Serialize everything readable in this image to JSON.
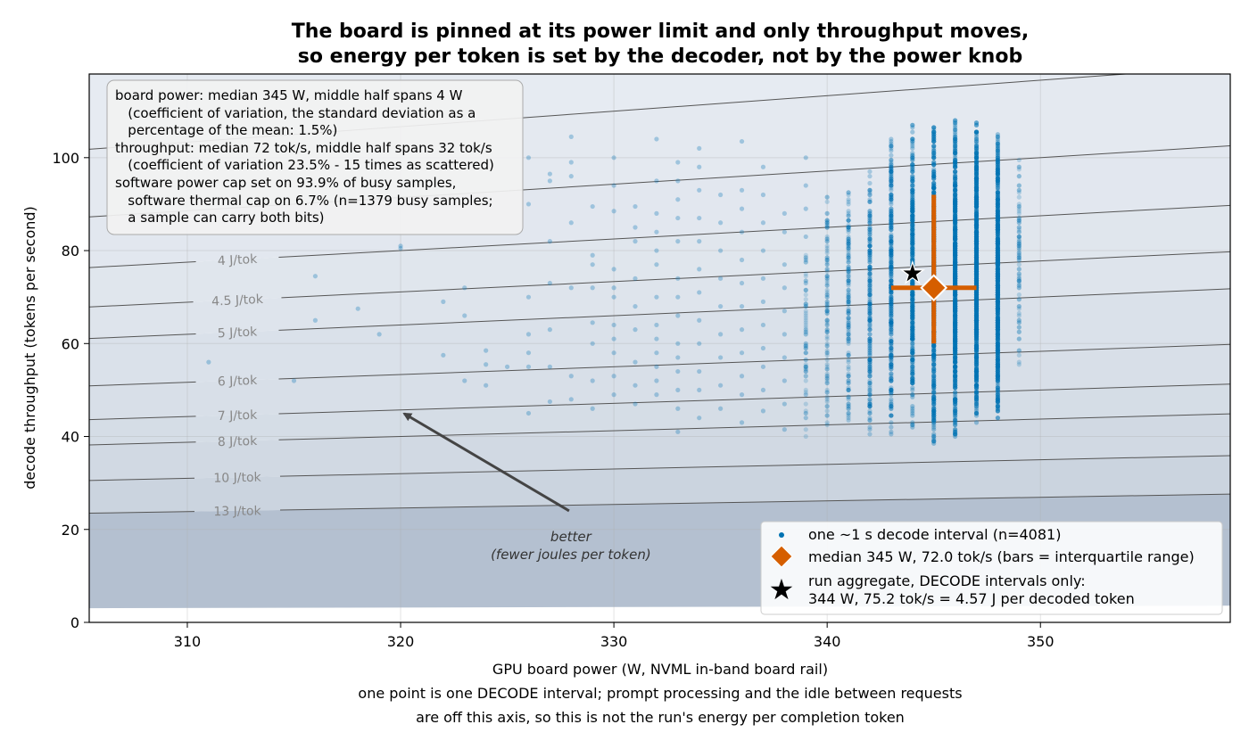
{
  "chart_data": {
    "type": "scatter",
    "title_lines": [
      "The board is pinned at its power limit and only throughput moves,",
      "so energy per token is set by the decoder, not by the power knob"
    ],
    "xlabel": "GPU board power (W, NVML in-band board rail)",
    "xlabel_notes": [
      "one point is one DECODE interval; prompt processing and the idle between requests",
      "are off this axis, so this is not the run's energy per completion token"
    ],
    "ylabel": "decode throughput (tokens per second)",
    "xlim": [
      305.4,
      358.9
    ],
    "ylim": [
      0,
      118
    ],
    "x_ticks": [
      310,
      320,
      330,
      340,
      350
    ],
    "y_ticks": [
      0,
      20,
      40,
      60,
      80,
      100
    ],
    "grid": true,
    "stats_box": [
      "board power: median 345 W, middle half spans 4 W",
      "   (coefficient of variation, the standard deviation as a",
      "   percentage of the mean: 1.5%)",
      "throughput: median 72 tok/s, middle half spans 32 tok/s",
      "   (coefficient of variation 23.5% - 15 times as scattered)",
      "software power cap set on 93.9% of busy samples,",
      "   software thermal cap on 6.7% (n=1379 busy samples;",
      "   a sample can carry both bits)"
    ],
    "iso_energy_lines": [
      {
        "jpt": 3.0,
        "label": ""
      },
      {
        "jpt": 3.5,
        "label": ""
      },
      {
        "jpt": 4.0,
        "label": "4 J/tok"
      },
      {
        "jpt": 4.5,
        "label": "4.5 J/tok"
      },
      {
        "jpt": 5.0,
        "label": "5 J/tok"
      },
      {
        "jpt": 6.0,
        "label": "6 J/tok"
      },
      {
        "jpt": 7.0,
        "label": "7 J/tok"
      },
      {
        "jpt": 8.0,
        "label": "8 J/tok"
      },
      {
        "jpt": 10.0,
        "label": "10 J/tok"
      },
      {
        "jpt": 13.0,
        "label": "13 J/tok"
      }
    ],
    "annotation": {
      "lines": [
        "better",
        "(fewer joules per token)"
      ],
      "arrow_from": [
        327.9,
        24
      ],
      "arrow_to": [
        320,
        45.5
      ]
    },
    "sparse_points": [
      [
        311,
        56
      ],
      [
        315,
        52
      ],
      [
        316,
        65
      ],
      [
        316,
        74.5
      ],
      [
        318,
        67.5
      ],
      [
        319,
        62
      ],
      [
        320,
        80.5
      ],
      [
        320,
        81
      ],
      [
        322,
        57.5
      ],
      [
        322,
        69
      ],
      [
        323,
        52
      ],
      [
        323,
        66
      ],
      [
        323,
        72
      ],
      [
        324,
        51
      ],
      [
        324,
        55.5
      ],
      [
        324,
        58.5
      ],
      [
        325,
        55
      ],
      [
        326,
        55
      ],
      [
        326,
        58
      ],
      [
        326,
        62
      ],
      [
        326,
        45
      ],
      [
        326,
        70
      ],
      [
        326,
        90
      ],
      [
        326,
        100
      ],
      [
        327,
        47.5
      ],
      [
        327,
        55
      ],
      [
        327,
        63
      ],
      [
        327,
        73
      ],
      [
        327,
        82
      ],
      [
        327,
        95
      ],
      [
        327,
        96.5
      ],
      [
        328,
        48
      ],
      [
        328,
        53
      ],
      [
        328,
        72
      ],
      [
        328,
        86
      ],
      [
        328,
        96
      ],
      [
        328,
        99
      ],
      [
        328,
        104.5
      ],
      [
        329,
        46
      ],
      [
        329,
        52
      ],
      [
        329,
        60
      ],
      [
        329,
        64.5
      ],
      [
        329,
        72
      ],
      [
        329,
        77
      ],
      [
        329,
        79
      ],
      [
        329,
        89.5
      ],
      [
        330,
        49
      ],
      [
        330,
        53
      ],
      [
        330,
        58
      ],
      [
        330,
        61
      ],
      [
        330,
        64
      ],
      [
        330,
        70
      ],
      [
        330,
        72
      ],
      [
        330,
        76
      ],
      [
        330,
        88.5
      ],
      [
        330,
        94
      ],
      [
        330,
        100
      ],
      [
        331,
        47
      ],
      [
        331,
        51
      ],
      [
        331,
        56
      ],
      [
        331,
        63
      ],
      [
        331,
        68
      ],
      [
        331,
        74
      ],
      [
        331,
        82
      ],
      [
        331,
        85
      ],
      [
        331,
        89.5
      ],
      [
        332,
        49
      ],
      [
        332,
        52
      ],
      [
        332,
        55
      ],
      [
        332,
        58
      ],
      [
        332,
        61
      ],
      [
        332,
        64
      ],
      [
        332,
        70
      ],
      [
        332,
        77
      ],
      [
        332,
        80
      ],
      [
        332,
        84
      ],
      [
        332,
        88
      ],
      [
        332,
        95
      ],
      [
        332,
        104
      ],
      [
        333,
        41
      ],
      [
        333,
        46
      ],
      [
        333,
        50
      ],
      [
        333,
        54
      ],
      [
        333,
        57
      ],
      [
        333,
        60
      ],
      [
        333,
        66
      ],
      [
        333,
        70
      ],
      [
        333,
        74
      ],
      [
        333,
        82
      ],
      [
        333,
        87
      ],
      [
        333,
        91
      ],
      [
        333,
        95
      ],
      [
        333,
        99
      ],
      [
        334,
        44
      ],
      [
        334,
        50
      ],
      [
        334,
        54
      ],
      [
        334,
        60
      ],
      [
        334,
        65
      ],
      [
        334,
        71
      ],
      [
        334,
        76
      ],
      [
        334,
        82
      ],
      [
        334,
        87
      ],
      [
        334,
        93
      ],
      [
        334,
        98
      ],
      [
        334,
        102
      ],
      [
        335,
        46
      ],
      [
        335,
        51
      ],
      [
        335,
        57
      ],
      [
        335,
        62
      ],
      [
        335,
        68
      ],
      [
        335,
        74
      ],
      [
        335,
        80
      ],
      [
        335,
        86
      ],
      [
        335,
        92
      ],
      [
        336,
        43
      ],
      [
        336,
        49
      ],
      [
        336,
        53
      ],
      [
        336,
        58
      ],
      [
        336,
        63
      ],
      [
        336,
        68
      ],
      [
        336,
        73
      ],
      [
        336,
        78
      ],
      [
        336,
        84
      ],
      [
        336,
        89
      ],
      [
        336,
        93
      ],
      [
        336,
        103.5
      ],
      [
        337,
        45.5
      ],
      [
        337,
        50
      ],
      [
        337,
        55
      ],
      [
        337,
        59
      ],
      [
        337,
        64
      ],
      [
        337,
        69
      ],
      [
        337,
        74
      ],
      [
        337,
        80
      ],
      [
        337,
        86
      ],
      [
        337,
        92
      ],
      [
        337,
        98
      ],
      [
        338,
        41.5
      ],
      [
        338,
        47
      ],
      [
        338,
        52
      ],
      [
        338,
        57
      ],
      [
        338,
        62
      ],
      [
        338,
        67
      ],
      [
        338,
        72
      ],
      [
        338,
        77
      ],
      [
        338,
        84
      ],
      [
        338,
        88
      ],
      [
        339,
        44
      ],
      [
        339,
        49
      ],
      [
        339,
        54
      ],
      [
        339,
        59
      ],
      [
        339,
        63
      ],
      [
        339,
        68
      ],
      [
        339,
        73
      ],
      [
        339,
        78
      ],
      [
        339,
        83
      ],
      [
        339,
        89
      ],
      [
        339,
        94
      ],
      [
        339,
        100
      ]
    ],
    "dense_columns": [
      {
        "x": 339,
        "lo": 40,
        "hi": 82,
        "n": 60,
        "alpha": 0.35
      },
      {
        "x": 340,
        "lo": 42,
        "hi": 92,
        "n": 110,
        "alpha": 0.4
      },
      {
        "x": 341,
        "lo": 41,
        "hi": 95,
        "n": 150,
        "alpha": 0.45
      },
      {
        "x": 342,
        "lo": 40,
        "hi": 97,
        "n": 230,
        "alpha": 0.5
      },
      {
        "x": 343,
        "lo": 40,
        "hi": 104,
        "n": 330,
        "alpha": 0.55
      },
      {
        "x": 344,
        "lo": 42,
        "hi": 108,
        "n": 430,
        "alpha": 0.6
      },
      {
        "x": 345,
        "lo": 37,
        "hi": 108,
        "n": 560,
        "alpha": 0.65
      },
      {
        "x": 346,
        "lo": 40,
        "hi": 108,
        "n": 720,
        "alpha": 0.65
      },
      {
        "x": 347,
        "lo": 42,
        "hi": 108,
        "n": 760,
        "alpha": 0.65
      },
      {
        "x": 348,
        "lo": 44,
        "hi": 105,
        "n": 660,
        "alpha": 0.65
      },
      {
        "x": 349,
        "lo": 53,
        "hi": 105,
        "n": 95,
        "alpha": 0.4
      }
    ],
    "median": {
      "x": 345,
      "y": 72.0,
      "x_iqr": [
        343,
        347
      ],
      "y_iqr": [
        60,
        92
      ]
    },
    "aggregate": {
      "x": 344,
      "y": 75.2
    },
    "legend": {
      "placement": "lower-right",
      "entries": [
        {
          "marker": "dot",
          "label": "one ~1 s decode interval (n=4081)"
        },
        {
          "marker": "diamond",
          "label": "median 345 W, 72.0 tok/s (bars = interquartile range)"
        },
        {
          "marker": "star",
          "label": "run aggregate, DECODE intervals only:",
          "label2": "344 W, 75.2 tok/s = 4.57 J per decoded token"
        }
      ]
    },
    "colors": {
      "points": "#0072b2",
      "median": "#d55e00",
      "star": "#000000",
      "iso_line": "#555555",
      "iso_label": "#888888",
      "band_top": "#f7fafd",
      "band_bottom": "#b4c0d0"
    }
  }
}
